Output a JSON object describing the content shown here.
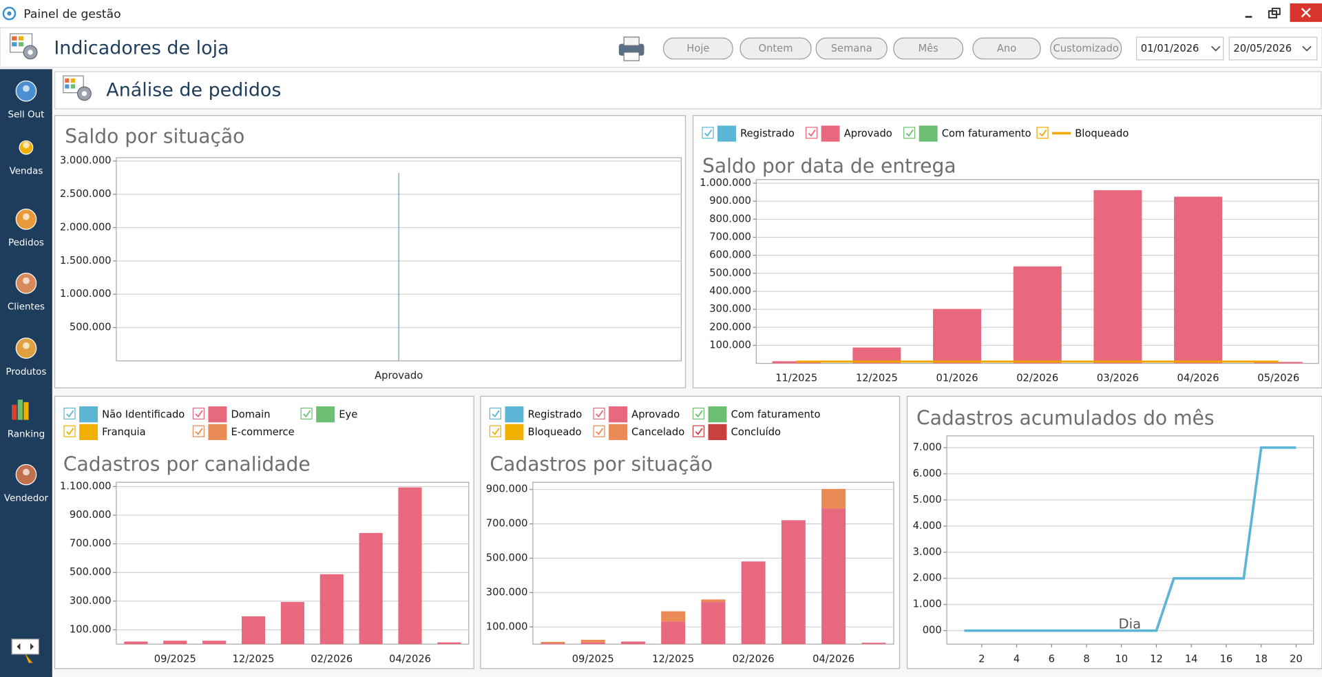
{
  "window": {
    "title": "Painel de gestão"
  },
  "header": {
    "title": "Indicadores de loja",
    "buttons": [
      "Hoje",
      "Ontem",
      "Semana",
      "Mês",
      "Ano",
      "Customizado"
    ],
    "date_from": "01/01/2026",
    "date_to": "20/05/2026"
  },
  "sidebar": [
    "Sell Out",
    "Vendas",
    "Pedidos",
    "Clientes",
    "Produtos",
    "Ranking",
    "Vendedor"
  ],
  "section": {
    "title": "Análise de pedidos"
  },
  "chart_data": [
    {
      "type": "bar",
      "title": "Saldo por situação",
      "categories": [
        "Aprovado"
      ],
      "values": [
        2820000
      ],
      "color": "#5b9bd5",
      "ylim": [
        0,
        3050000
      ],
      "yticks": [
        {
          "value": 500000,
          "label": "500.000"
        },
        {
          "value": 1000000,
          "label": "1.000.000"
        },
        {
          "value": 1500000,
          "label": "1.500.000"
        },
        {
          "value": 2000000,
          "label": "2.000.000"
        },
        {
          "value": 2500000,
          "label": "2.500.000"
        },
        {
          "value": 3000000,
          "label": "3.000.000"
        }
      ],
      "grid": true
    },
    {
      "type": "bar",
      "title": "Saldo por data de entrega",
      "categories": [
        "11/2025",
        "12/2025",
        "01/2026",
        "02/2026",
        "03/2026",
        "04/2026",
        "05/2026"
      ],
      "series": [
        {
          "name": "Registrado",
          "color": "#5bb5d5"
        },
        {
          "name": "Aprovado",
          "color": "#e8697d",
          "values": [
            12000,
            88000,
            302000,
            538000,
            961000,
            925000,
            8000
          ]
        },
        {
          "name": "Com faturamento",
          "color": "#6cbf72"
        },
        {
          "name": "Bloqueado",
          "color": "#f0a800",
          "type": "line",
          "values": [
            10000,
            10000,
            10000,
            10000,
            10000,
            10000,
            10000
          ]
        }
      ],
      "ylim": [
        0,
        1020000
      ],
      "yticks": [
        {
          "value": 100000,
          "label": "100.000"
        },
        {
          "value": 200000,
          "label": "200.000"
        },
        {
          "value": 300000,
          "label": "300.000"
        },
        {
          "value": 400000,
          "label": "400.000"
        },
        {
          "value": 500000,
          "label": "500.000"
        },
        {
          "value": 600000,
          "label": "600.000"
        },
        {
          "value": 700000,
          "label": "700.000"
        },
        {
          "value": 800000,
          "label": "800.000"
        },
        {
          "value": 900000,
          "label": "900.000"
        },
        {
          "value": 1000000,
          "label": "1.000.000"
        }
      ],
      "grid": true,
      "legend": "top-left"
    },
    {
      "type": "bar",
      "title": "Cadastros por canalidade",
      "categories": [
        null,
        "09/2025",
        null,
        "12/2025",
        null,
        "02/2026",
        null,
        "04/2026",
        null
      ],
      "series": [
        {
          "name": "Não Identificado",
          "color": "#5bb5d5"
        },
        {
          "name": "Domain",
          "color": "#e8697d",
          "values": [
            18000,
            24000,
            24000,
            194000,
            294000,
            488000,
            776000,
            1094000,
            12000
          ]
        },
        {
          "name": "Eye",
          "color": "#6cbf72"
        },
        {
          "name": "Franquia",
          "color": "#f0b000"
        },
        {
          "name": "E-commerce",
          "color": "#ea8a55"
        }
      ],
      "ylim": [
        0,
        1130000
      ],
      "yticks": [
        {
          "value": 100000,
          "label": "100.000"
        },
        {
          "value": 300000,
          "label": "300.000"
        },
        {
          "value": 500000,
          "label": "500.000"
        },
        {
          "value": 700000,
          "label": "700.000"
        },
        {
          "value": 900000,
          "label": "900.000"
        },
        {
          "value": 1100000,
          "label": "1.100.000"
        }
      ],
      "grid": true,
      "legend": "top-left"
    },
    {
      "type": "bar",
      "title": "Cadastros por situação",
      "categories": [
        null,
        "09/2025",
        null,
        "12/2025",
        null,
        "02/2026",
        null,
        "04/2026",
        null
      ],
      "stacked": true,
      "series": [
        {
          "name": "Registrado",
          "color": "#5bb5d5"
        },
        {
          "name": "Aprovado",
          "color": "#e8697d",
          "values": [
            5000,
            10000,
            15000,
            132000,
            245000,
            481000,
            721000,
            790000,
            8000
          ]
        },
        {
          "name": "Com faturamento",
          "color": "#6cbf72"
        },
        {
          "name": "Bloqueado",
          "color": "#f0b000"
        },
        {
          "name": "Cancelado",
          "color": "#ea8a55",
          "values": [
            8000,
            15000,
            0,
            59000,
            15000,
            0,
            0,
            113000,
            0
          ]
        },
        {
          "name": "Concluído",
          "color": "#c8403f"
        }
      ],
      "ylim": [
        0,
        942000
      ],
      "yticks": [
        {
          "value": 100000,
          "label": "100.000"
        },
        {
          "value": 300000,
          "label": "300.000"
        },
        {
          "value": 500000,
          "label": "500.000"
        },
        {
          "value": 700000,
          "label": "700.000"
        },
        {
          "value": 900000,
          "label": "900.000"
        }
      ],
      "grid": true,
      "legend": "top-left"
    },
    {
      "type": "line",
      "title": "Cadastros acumulados do mês",
      "x_label": "Dia",
      "x": [
        1,
        2,
        3,
        4,
        5,
        6,
        7,
        8,
        9,
        10,
        11,
        12,
        13,
        14,
        15,
        16,
        17,
        18,
        19,
        20
      ],
      "values": [
        0,
        0,
        0,
        0,
        0,
        0,
        0,
        0,
        0,
        0,
        0,
        0,
        2000,
        2000,
        2000,
        2000,
        2000,
        7000,
        7000,
        7000
      ],
      "color": "#5bb5d5",
      "xlim": [
        0,
        21
      ],
      "xticks": [
        2,
        4,
        6,
        8,
        10,
        12,
        14,
        16,
        18,
        20
      ],
      "ylim": [
        -516,
        7450
      ],
      "yticks": [
        {
          "value": 0,
          "label": "000"
        },
        {
          "value": 1000,
          "label": "1.000"
        },
        {
          "value": 2000,
          "label": "2.000"
        },
        {
          "value": 3000,
          "label": "3.000"
        },
        {
          "value": 4000,
          "label": "4.000"
        },
        {
          "value": 5000,
          "label": "5.000"
        },
        {
          "value": 6000,
          "label": "6.000"
        },
        {
          "value": 7000,
          "label": "7.000"
        }
      ],
      "grid": true
    }
  ]
}
